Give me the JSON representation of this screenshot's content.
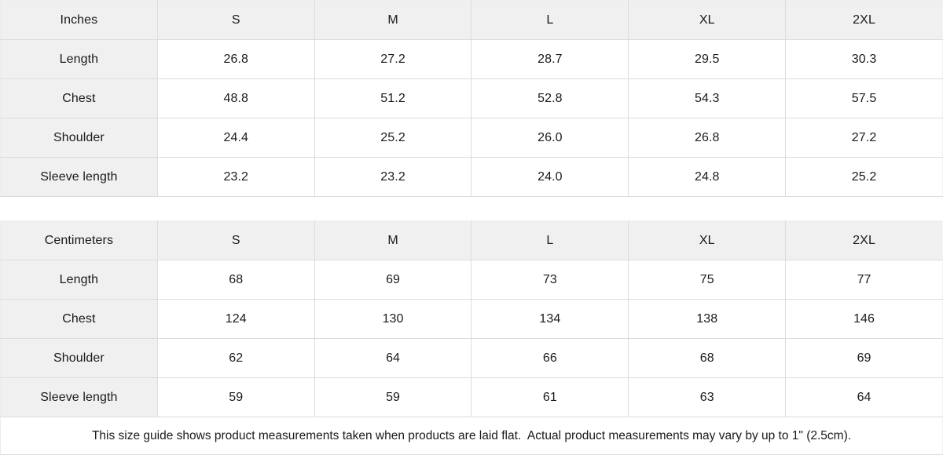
{
  "style": {
    "header_bg": "#f0f0f0",
    "border_color": "#dcdcdc",
    "text_color": "#1a1a1a",
    "background": "#ffffff"
  },
  "tables": [
    {
      "unit_label": "Inches",
      "sizes": [
        "S",
        "M",
        "L",
        "XL",
        "2XL"
      ],
      "rows": [
        {
          "label": "Length",
          "values": [
            "26.8",
            "27.2",
            "28.7",
            "29.5",
            "30.3"
          ]
        },
        {
          "label": "Chest",
          "values": [
            "48.8",
            "51.2",
            "52.8",
            "54.3",
            "57.5"
          ]
        },
        {
          "label": "Shoulder",
          "values": [
            "24.4",
            "25.2",
            "26.0",
            "26.8",
            "27.2"
          ]
        },
        {
          "label": "Sleeve length",
          "values": [
            "23.2",
            "23.2",
            "24.0",
            "24.8",
            "25.2"
          ]
        }
      ]
    },
    {
      "unit_label": "Centimeters",
      "sizes": [
        "S",
        "M",
        "L",
        "XL",
        "2XL"
      ],
      "rows": [
        {
          "label": "Length",
          "values": [
            "68",
            "69",
            "73",
            "75",
            "77"
          ]
        },
        {
          "label": "Chest",
          "values": [
            "124",
            "130",
            "134",
            "138",
            "146"
          ]
        },
        {
          "label": "Shoulder",
          "values": [
            "62",
            "64",
            "66",
            "68",
            "69"
          ]
        },
        {
          "label": "Sleeve length",
          "values": [
            "59",
            "59",
            "61",
            "63",
            "64"
          ]
        }
      ]
    }
  ],
  "footer": {
    "note": "This size guide shows product measurements taken when products are laid flat.  Actual product measurements may vary by up to 1\" (2.5cm)."
  }
}
